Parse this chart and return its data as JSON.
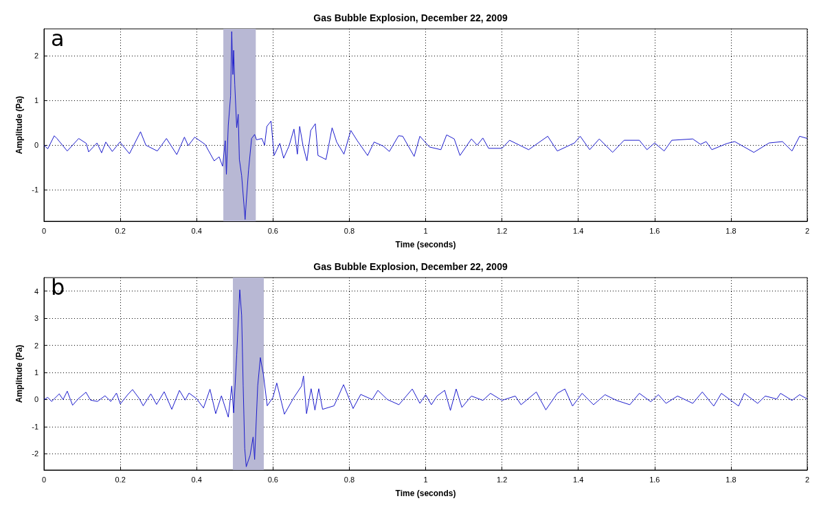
{
  "chart_data": [
    {
      "type": "line",
      "title": "Gas Bubble Explosion, December 22, 2009",
      "xlabel": "Time (seconds)",
      "ylabel": "Amplitude (Pa)",
      "annotations": [
        "a"
      ],
      "xlim": [
        0,
        2
      ],
      "xticks": [
        0,
        0.2,
        0.4,
        0.6,
        0.8,
        1,
        1.2,
        1.4,
        1.6,
        1.8,
        2
      ],
      "ylim": [
        -1.7,
        2.6
      ],
      "yticks": [
        -1,
        0,
        1,
        2
      ],
      "grid": true,
      "bands": [
        {
          "axis": "x",
          "from": 0.47,
          "to": 0.555,
          "color": "#b8b8d4"
        }
      ],
      "series": [
        {
          "color": "#1a1acc",
          "x": [
            0,
            0.01,
            0.027,
            0.034,
            0.061,
            0.091,
            0.111,
            0.117,
            0.139,
            0.151,
            0.162,
            0.179,
            0.199,
            0.224,
            0.253,
            0.267,
            0.297,
            0.321,
            0.348,
            0.368,
            0.378,
            0.395,
            0.422,
            0.446,
            0.459,
            0.468,
            0.475,
            0.478,
            0.483,
            0.489,
            0.492,
            0.495,
            0.497,
            0.5,
            0.505,
            0.509,
            0.512,
            0.518,
            0.524,
            0.527,
            0.53,
            0.536,
            0.544,
            0.552,
            0.557,
            0.571,
            0.578,
            0.584,
            0.595,
            0.603,
            0.618,
            0.628,
            0.642,
            0.655,
            0.664,
            0.67,
            0.679,
            0.689,
            0.699,
            0.711,
            0.718,
            0.739,
            0.755,
            0.767,
            0.786,
            0.804,
            0.821,
            0.848,
            0.865,
            0.889,
            0.905,
            0.929,
            0.94,
            0.97,
            0.985,
            1.01,
            1.04,
            1.055,
            1.075,
            1.09,
            1.12,
            1.135,
            1.15,
            1.165,
            1.2,
            1.22,
            1.27,
            1.32,
            1.345,
            1.39,
            1.405,
            1.43,
            1.455,
            1.49,
            1.52,
            1.56,
            1.58,
            1.6,
            1.625,
            1.645,
            1.7,
            1.72,
            1.735,
            1.75,
            1.79,
            1.81,
            1.86,
            1.9,
            1.935,
            1.96,
            1.98,
            2
          ],
          "values": [
            0,
            -0.08,
            0.21,
            0.15,
            -0.13,
            0.15,
            0.04,
            -0.15,
            0.05,
            -0.17,
            0.07,
            -0.14,
            0.07,
            -0.19,
            0.3,
            0,
            -0.13,
            0.15,
            -0.21,
            0.18,
            -0.01,
            0.18,
            0.02,
            -0.35,
            -0.26,
            -0.47,
            0.1,
            -0.65,
            0.45,
            1.1,
            2.54,
            1.58,
            2.12,
            1.35,
            0.39,
            0.69,
            -0.32,
            -0.68,
            -1.33,
            -1.66,
            -1.27,
            -0.56,
            0.15,
            0.24,
            0.12,
            0.15,
            0,
            0.42,
            0.54,
            -0.23,
            0.04,
            -0.29,
            -0.02,
            0.36,
            -0.2,
            0.42,
            -0.02,
            -0.35,
            0.33,
            0.48,
            -0.23,
            -0.32,
            0.39,
            0.07,
            -0.2,
            0.33,
            0.1,
            -0.23,
            0.07,
            -0.02,
            -0.14,
            0.21,
            0.2,
            -0.25,
            0.2,
            -0.04,
            -0.1,
            0.23,
            0.14,
            -0.23,
            0.14,
            0,
            0.16,
            -0.07,
            -0.07,
            0.11,
            -0.1,
            0.2,
            -0.13,
            0.05,
            0.2,
            -0.1,
            0.14,
            -0.16,
            0.11,
            0.11,
            -0.1,
            0.05,
            -0.13,
            0.11,
            0.14,
            0.02,
            0.08,
            -0.1,
            0.04,
            0.08,
            -0.16,
            0.05,
            0.08,
            -0.13,
            0.2,
            0.15
          ]
        }
      ]
    },
    {
      "type": "line",
      "title": "Gas Bubble Explosion, December 22, 2009",
      "xlabel": "Time (seconds)",
      "ylabel": "Amplitude (Pa)",
      "annotations": [
        "b"
      ],
      "xlim": [
        0,
        2
      ],
      "xticks": [
        0,
        0.2,
        0.4,
        0.6,
        0.8,
        1,
        1.2,
        1.4,
        1.6,
        1.8,
        2
      ],
      "ylim": [
        -2.6,
        4.5
      ],
      "yticks": [
        -2,
        -1,
        0,
        1,
        2,
        3,
        4
      ],
      "grid": true,
      "bands": [
        {
          "axis": "x",
          "from": 0.495,
          "to": 0.576,
          "color": "#b8b8d4"
        }
      ],
      "series": [
        {
          "color": "#1a1acc",
          "x": [
            0,
            0.01,
            0.02,
            0.04,
            0.05,
            0.061,
            0.075,
            0.09,
            0.11,
            0.122,
            0.14,
            0.16,
            0.175,
            0.19,
            0.2,
            0.22,
            0.232,
            0.25,
            0.26,
            0.28,
            0.295,
            0.315,
            0.335,
            0.355,
            0.37,
            0.38,
            0.4,
            0.418,
            0.435,
            0.45,
            0.465,
            0.483,
            0.492,
            0.497,
            0.505,
            0.513,
            0.518,
            0.522,
            0.526,
            0.53,
            0.54,
            0.548,
            0.552,
            0.56,
            0.567,
            0.575,
            0.585,
            0.6,
            0.61,
            0.63,
            0.655,
            0.675,
            0.68,
            0.688,
            0.7,
            0.71,
            0.72,
            0.73,
            0.76,
            0.785,
            0.81,
            0.83,
            0.86,
            0.875,
            0.9,
            0.93,
            0.965,
            0.985,
            1,
            1.015,
            1.03,
            1.05,
            1.065,
            1.08,
            1.095,
            1.12,
            1.15,
            1.17,
            1.2,
            1.235,
            1.25,
            1.29,
            1.315,
            1.345,
            1.365,
            1.385,
            1.41,
            1.44,
            1.47,
            1.5,
            1.535,
            1.56,
            1.59,
            1.61,
            1.63,
            1.66,
            1.7,
            1.725,
            1.755,
            1.775,
            1.8,
            1.82,
            1.835,
            1.87,
            1.89,
            1.92,
            1.93,
            1.96,
            1.98,
            2
          ],
          "values": [
            0,
            0.08,
            -0.07,
            0.21,
            0,
            0.31,
            -0.21,
            0.03,
            0.27,
            -0.02,
            -0.07,
            0.14,
            -0.07,
            0.24,
            -0.16,
            0.19,
            0.37,
            0.03,
            -0.23,
            0.21,
            -0.18,
            0.29,
            -0.36,
            0.34,
            -0.02,
            0.24,
            0.03,
            -0.31,
            0.38,
            -0.52,
            0.14,
            -0.65,
            0.5,
            -0.49,
            1.65,
            4.05,
            3.11,
            0.5,
            -1.8,
            -2.48,
            -2.06,
            -1.38,
            -2.21,
            0.5,
            1.55,
            0.92,
            -0.23,
            0.08,
            0.61,
            -0.54,
            0.08,
            0.5,
            0.87,
            -0.52,
            0.4,
            -0.39,
            0.4,
            -0.36,
            -0.23,
            0.55,
            -0.33,
            0.19,
            0,
            0.34,
            0,
            -0.19,
            0.39,
            -0.14,
            0.18,
            -0.19,
            0.13,
            0.34,
            -0.4,
            0.39,
            -0.29,
            0.13,
            -0.03,
            0.23,
            -0.03,
            0.13,
            -0.19,
            0.28,
            -0.38,
            0.23,
            0.39,
            -0.24,
            0.23,
            -0.19,
            0.18,
            -0.03,
            -0.19,
            0.23,
            -0.08,
            0.18,
            -0.14,
            0.13,
            -0.14,
            0.28,
            -0.24,
            0.23,
            -0.03,
            -0.24,
            0.23,
            -0.14,
            0.13,
            0.02,
            0.23,
            -0.03,
            0.18,
            0.02
          ]
        }
      ]
    }
  ]
}
